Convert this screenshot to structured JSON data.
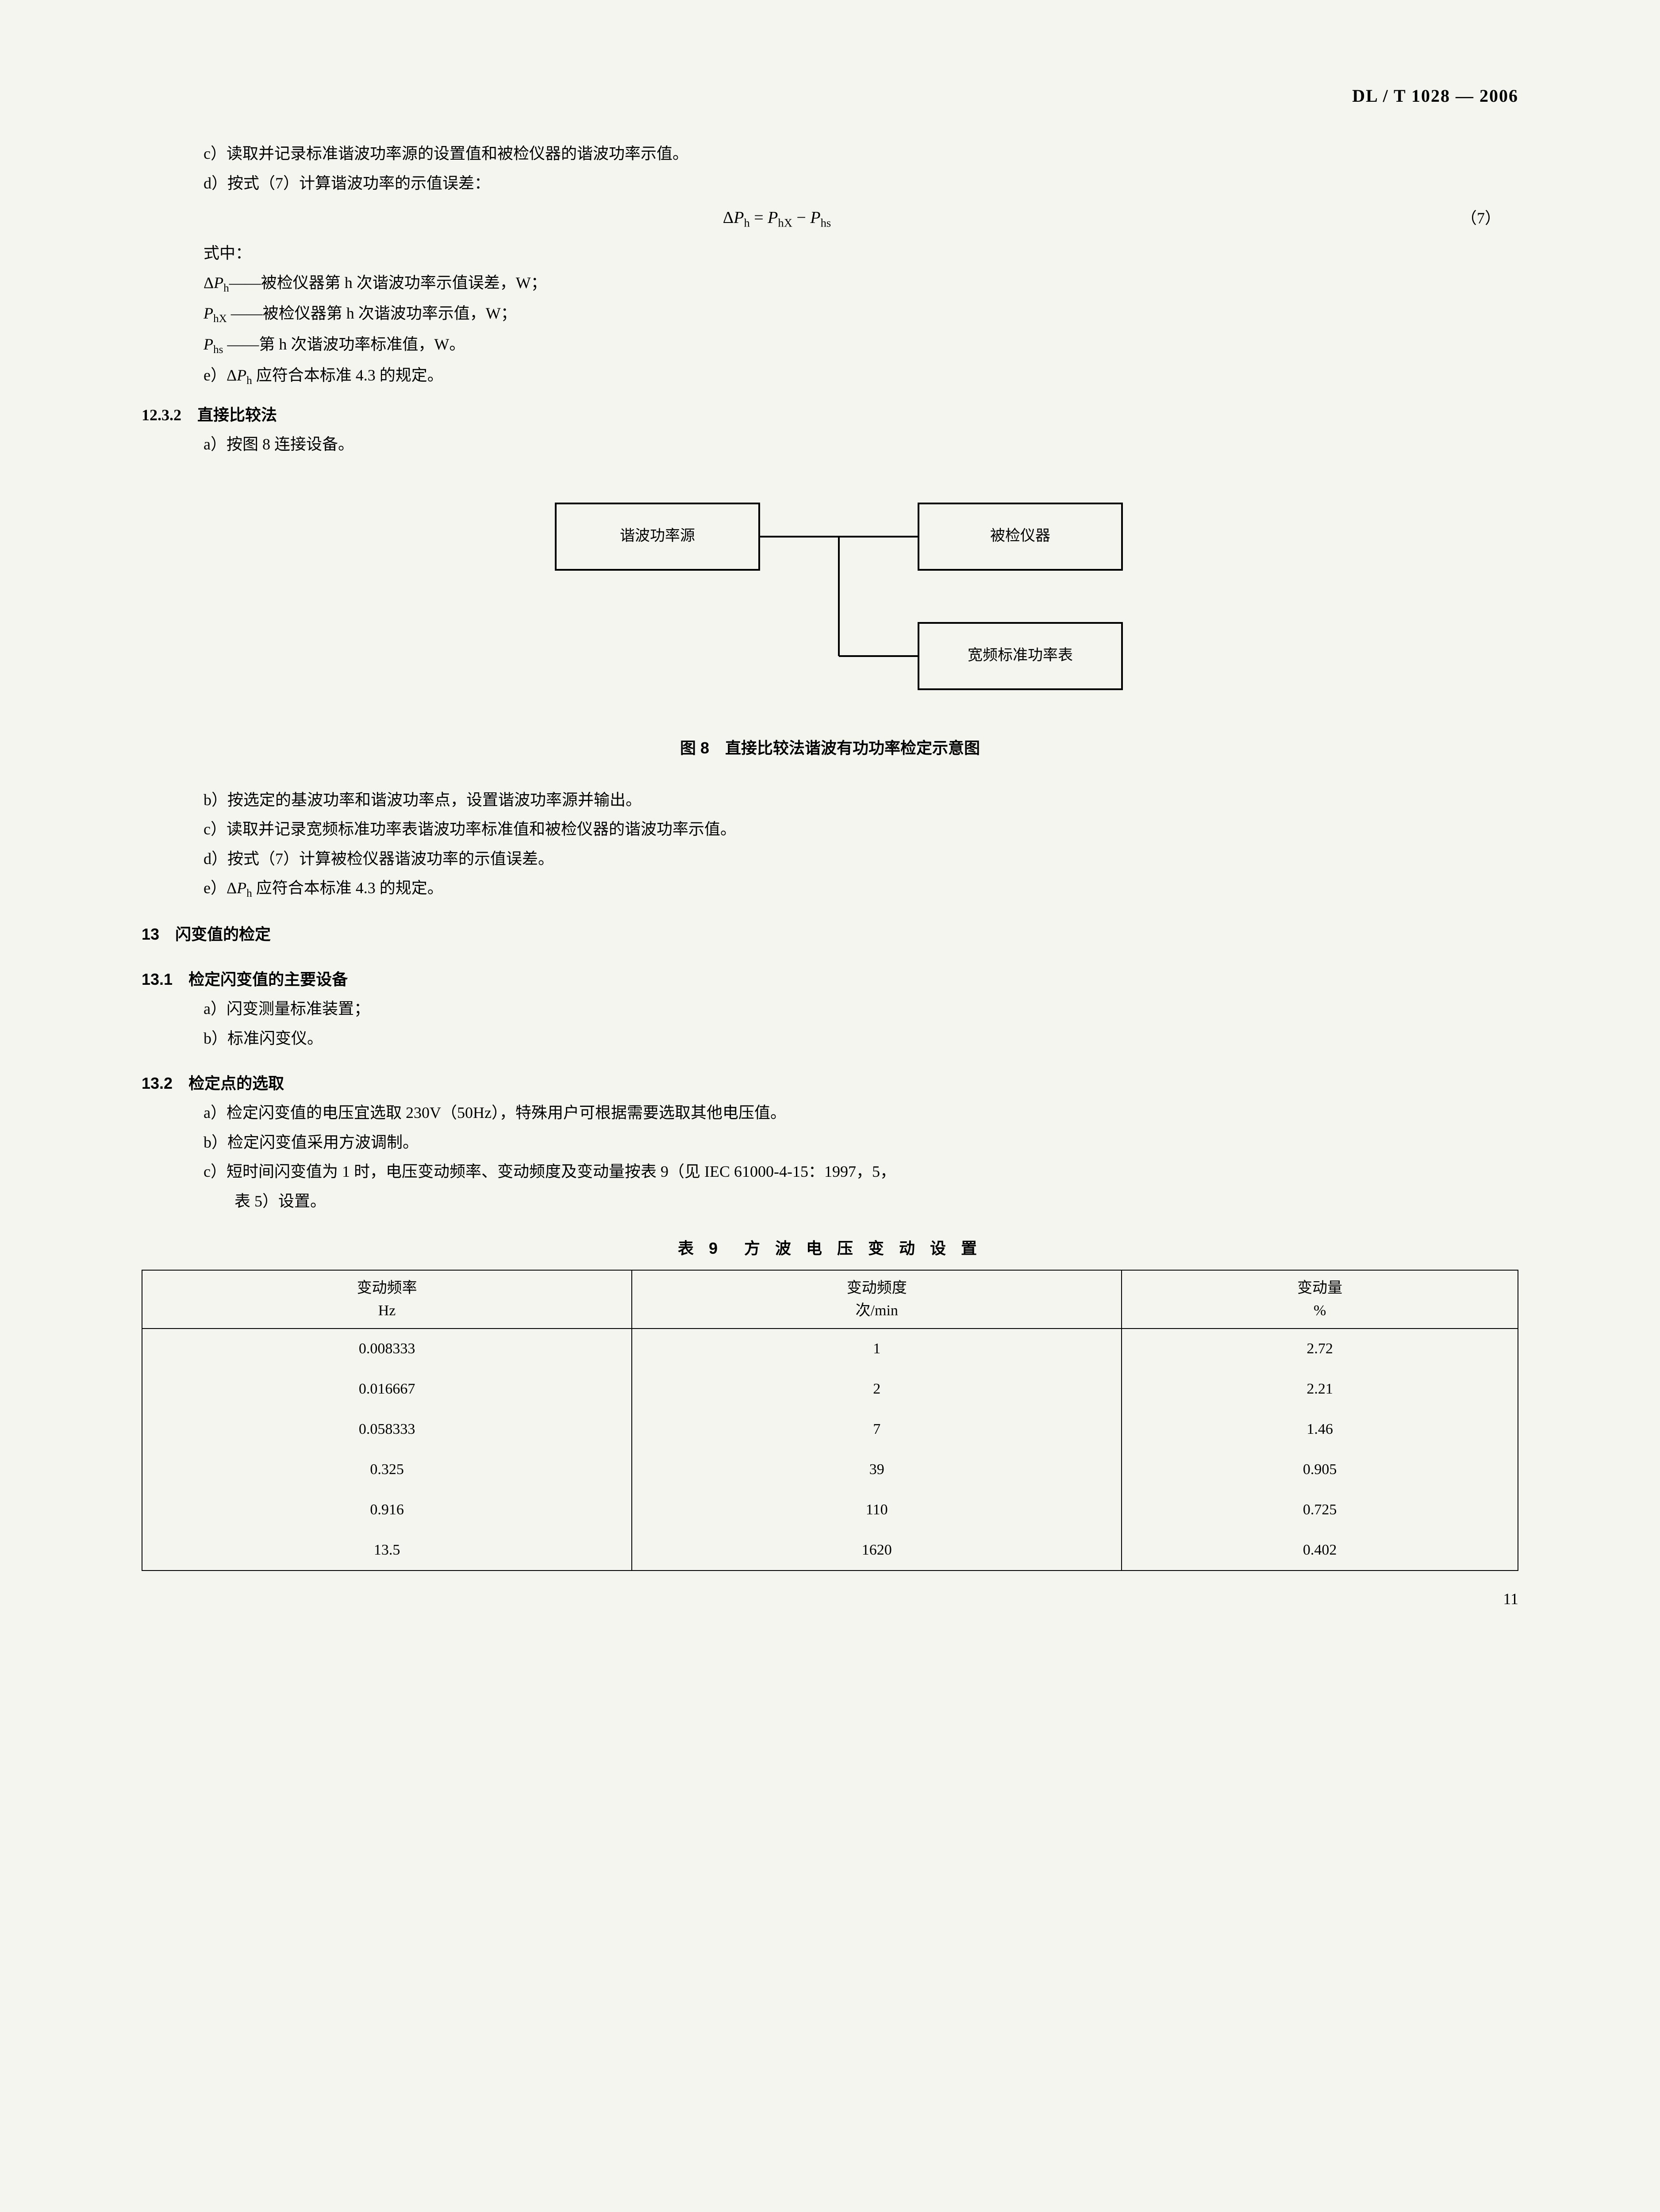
{
  "header": "DL / T 1028 — 2006",
  "lines": {
    "l1": "c）读取并记录标准谐波功率源的设置值和被检仪器的谐波功率示值。",
    "l2": "d）按式（7）计算谐波功率的示值误差：",
    "equation": "ΔPₕ = PₕX − Pₕₛ",
    "equation_num": "（7）",
    "l3": "式中：",
    "l4a": "ΔPₕ",
    "l4b": "——被检仪器第 h 次谐波功率示值误差，W；",
    "l5a": "PₕX",
    "l5b": "——被检仪器第 h 次谐波功率示值，W；",
    "l6a": "Pₕₛ",
    "l6b": "——第 h 次谐波功率标准值，W。",
    "l7": "e）ΔPₕ 应符合本标准 4.3 的规定。",
    "s1": "12.3.2　直接比较法",
    "l8": "a）按图 8 连接设备。"
  },
  "diagram": {
    "box1": "谐波功率源",
    "box2": "被检仪器",
    "box3": "宽频标准功率表",
    "caption": "图 8　直接比较法谐波有功功率检定示意图"
  },
  "lines2": {
    "l1": "b）按选定的基波功率和谐波功率点，设置谐波功率源并输出。",
    "l2": "c）读取并记录宽频标准功率表谐波功率标准值和被检仪器的谐波功率示值。",
    "l3": "d）按式（7）计算被检仪器谐波功率的示值误差。",
    "l4": "e）ΔPₕ 应符合本标准 4.3 的规定。"
  },
  "sec13": "13　闪变值的检定",
  "sec131": "13.1　检定闪变值的主要设备",
  "l131a": "a）闪变测量标准装置；",
  "l131b": "b）标准闪变仪。",
  "sec132": "13.2　检定点的选取",
  "l132a": "a）检定闪变值的电压宜选取 230V（50Hz），特殊用户可根据需要选取其他电压值。",
  "l132b": "b）检定闪变值采用方波调制。",
  "l132c1": "c）短时间闪变值为 1 时，电压变动频率、变动频度及变动量按表 9（见 IEC 61000-4-15：1997，5，",
  "l132c2": "表 5）设置。",
  "tableCaption": "表 9　方 波 电 压 变 动 设 置",
  "table": {
    "headers": {
      "h1a": "变动频率",
      "h1b": "Hz",
      "h2a": "变动频度",
      "h2b": "次/min",
      "h3a": "变动量",
      "h3b": "%"
    },
    "rows": [
      [
        "0.008333",
        "1",
        "2.72"
      ],
      [
        "0.016667",
        "2",
        "2.21"
      ],
      [
        "0.058333",
        "7",
        "1.46"
      ],
      [
        "0.325",
        "39",
        "0.905"
      ],
      [
        "0.916",
        "110",
        "0.725"
      ],
      [
        "13.5",
        "1620",
        "0.402"
      ]
    ]
  },
  "pageNum": "11"
}
